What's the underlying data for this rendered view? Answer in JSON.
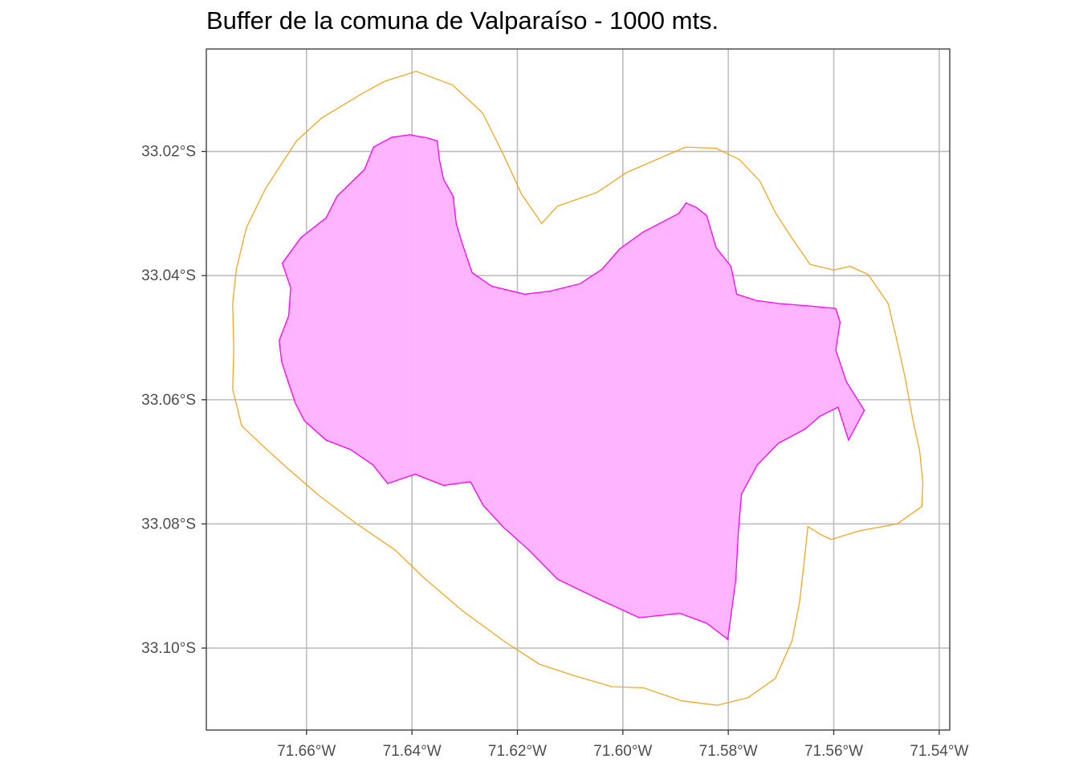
{
  "title": "Buffer de la comuna de Valparaíso - 1000 mts.",
  "chart_data": {
    "type": "map",
    "title": "Buffer de la comuna de Valparaíso - 1000 mts.",
    "crs": "lon/lat (degrees)",
    "xlim": [
      -71.679,
      -71.538
    ],
    "ylim": [
      -33.1132,
      -33.0035
    ],
    "x_ticks": [
      {
        "value": -71.66,
        "label": "71.66°W"
      },
      {
        "value": -71.64,
        "label": "71.64°W"
      },
      {
        "value": -71.62,
        "label": "71.62°W"
      },
      {
        "value": -71.6,
        "label": "71.60°W"
      },
      {
        "value": -71.58,
        "label": "71.58°W"
      },
      {
        "value": -71.56,
        "label": "71.56°W"
      },
      {
        "value": -71.54,
        "label": "71.54°W"
      }
    ],
    "y_ticks": [
      {
        "value": -33.02,
        "label": "33.02°S"
      },
      {
        "value": -33.04,
        "label": "33.04°S"
      },
      {
        "value": -33.06,
        "label": "33.06°S"
      },
      {
        "value": -33.08,
        "label": "33.08°S"
      },
      {
        "value": -33.1,
        "label": "33.10°S"
      }
    ],
    "grid": true,
    "legend": "none",
    "colors": {
      "buffer_stroke": "#f5a623",
      "comuna_fill": "#ffb3ff",
      "comuna_stroke": "#ff00ff",
      "grid": "#bebebe",
      "panel_border": "#333333"
    },
    "layers": [
      {
        "id": "buffer",
        "style": "outline",
        "coords": [
          [
            -71.6392,
            -33.0071
          ],
          [
            -71.6323,
            -33.0093
          ],
          [
            -71.6266,
            -33.0138
          ],
          [
            -71.6226,
            -33.0206
          ],
          [
            -71.6192,
            -33.0269
          ],
          [
            -71.6154,
            -33.0316
          ],
          [
            -71.6124,
            -33.0288
          ],
          [
            -71.6049,
            -33.0266
          ],
          [
            -71.5993,
            -33.0234
          ],
          [
            -71.5925,
            -33.0209
          ],
          [
            -71.5881,
            -33.0193
          ],
          [
            -71.5823,
            -33.0195
          ],
          [
            -71.5779,
            -33.0213
          ],
          [
            -71.574,
            -33.0248
          ],
          [
            -71.5711,
            -33.0298
          ],
          [
            -71.5679,
            -33.034
          ],
          [
            -71.5645,
            -33.0382
          ],
          [
            -71.56,
            -33.0391
          ],
          [
            -71.5569,
            -33.0385
          ],
          [
            -71.5535,
            -33.0398
          ],
          [
            -71.5497,
            -33.0445
          ],
          [
            -71.5482,
            -33.0498
          ],
          [
            -71.5465,
            -33.0563
          ],
          [
            -71.545,
            -33.0632
          ],
          [
            -71.5437,
            -33.0683
          ],
          [
            -71.5431,
            -33.0735
          ],
          [
            -71.5433,
            -33.0772
          ],
          [
            -71.548,
            -33.08
          ],
          [
            -71.5551,
            -33.0811
          ],
          [
            -71.5605,
            -33.0825
          ],
          [
            -71.5625,
            -33.0817
          ],
          [
            -71.5649,
            -33.0804
          ],
          [
            -71.5657,
            -33.0868
          ],
          [
            -71.5665,
            -33.0927
          ],
          [
            -71.5679,
            -33.0988
          ],
          [
            -71.5711,
            -33.1049
          ],
          [
            -71.5763,
            -33.108
          ],
          [
            -71.5821,
            -33.1092
          ],
          [
            -71.5888,
            -33.1085
          ],
          [
            -71.5961,
            -33.1064
          ],
          [
            -71.6021,
            -33.1062
          ],
          [
            -71.609,
            -33.1045
          ],
          [
            -71.6158,
            -33.1026
          ],
          [
            -71.6225,
            -33.0989
          ],
          [
            -71.6304,
            -33.094
          ],
          [
            -71.6377,
            -33.0887
          ],
          [
            -71.6432,
            -33.0842
          ],
          [
            -71.6506,
            -33.0799
          ],
          [
            -71.6575,
            -33.0755
          ],
          [
            -71.6635,
            -33.0711
          ],
          [
            -71.6682,
            -33.0675
          ],
          [
            -71.6723,
            -33.0642
          ],
          [
            -71.674,
            -33.0583
          ],
          [
            -71.6738,
            -33.0518
          ],
          [
            -71.674,
            -33.0445
          ],
          [
            -71.6733,
            -33.039
          ],
          [
            -71.6714,
            -33.0323
          ],
          [
            -71.6678,
            -33.026
          ],
          [
            -71.6619,
            -33.0183
          ],
          [
            -71.6571,
            -33.0146
          ],
          [
            -71.6495,
            -33.0107
          ],
          [
            -71.6452,
            -33.0087
          ],
          [
            -71.6392,
            -33.0071
          ]
        ]
      },
      {
        "id": "comuna",
        "style": "filled",
        "coords": [
          [
            -71.6403,
            -33.0173
          ],
          [
            -71.6393,
            -33.0175
          ],
          [
            -71.6372,
            -33.0178
          ],
          [
            -71.6352,
            -33.0183
          ],
          [
            -71.6348,
            -33.0213
          ],
          [
            -71.634,
            -33.0245
          ],
          [
            -71.6322,
            -33.0272
          ],
          [
            -71.6316,
            -33.0316
          ],
          [
            -71.6306,
            -33.0345
          ],
          [
            -71.6286,
            -33.0395
          ],
          [
            -71.6249,
            -33.0417
          ],
          [
            -71.6186,
            -33.043
          ],
          [
            -71.6138,
            -33.0425
          ],
          [
            -71.6081,
            -33.0413
          ],
          [
            -71.604,
            -33.039
          ],
          [
            -71.6006,
            -33.0357
          ],
          [
            -71.5962,
            -33.033
          ],
          [
            -71.5894,
            -33.03
          ],
          [
            -71.588,
            -33.0283
          ],
          [
            -71.5861,
            -33.029
          ],
          [
            -71.5841,
            -33.0303
          ],
          [
            -71.5823,
            -33.0355
          ],
          [
            -71.5795,
            -33.0385
          ],
          [
            -71.5784,
            -33.043
          ],
          [
            -71.5747,
            -33.044
          ],
          [
            -71.5704,
            -33.0445
          ],
          [
            -71.5646,
            -33.0449
          ],
          [
            -71.5596,
            -33.0453
          ],
          [
            -71.5588,
            -33.0475
          ],
          [
            -71.5596,
            -33.052
          ],
          [
            -71.5576,
            -33.0571
          ],
          [
            -71.5542,
            -33.0617
          ],
          [
            -71.5572,
            -33.0665
          ],
          [
            -71.5592,
            -33.0612
          ],
          [
            -71.5627,
            -33.0627
          ],
          [
            -71.5654,
            -33.0647
          ],
          [
            -71.5705,
            -33.067
          ],
          [
            -71.5745,
            -33.0705
          ],
          [
            -71.5775,
            -33.0752
          ],
          [
            -71.5781,
            -33.0815
          ],
          [
            -71.5786,
            -33.0891
          ],
          [
            -71.5801,
            -33.0986
          ],
          [
            -71.5841,
            -33.096
          ],
          [
            -71.5892,
            -33.0944
          ],
          [
            -71.5969,
            -33.0951
          ],
          [
            -71.6046,
            -33.0921
          ],
          [
            -71.6124,
            -33.0889
          ],
          [
            -71.6181,
            -33.084
          ],
          [
            -71.6227,
            -33.0805
          ],
          [
            -71.6265,
            -33.077
          ],
          [
            -71.6289,
            -33.0732
          ],
          [
            -71.634,
            -33.0738
          ],
          [
            -71.6394,
            -33.072
          ],
          [
            -71.6446,
            -33.0735
          ],
          [
            -71.6474,
            -33.0705
          ],
          [
            -71.6517,
            -33.068
          ],
          [
            -71.6563,
            -33.0665
          ],
          [
            -71.6604,
            -33.0634
          ],
          [
            -71.6621,
            -33.0606
          ],
          [
            -71.6636,
            -33.0568
          ],
          [
            -71.6647,
            -33.0539
          ],
          [
            -71.6652,
            -33.0505
          ],
          [
            -71.6634,
            -33.0465
          ],
          [
            -71.663,
            -33.042
          ],
          [
            -71.6646,
            -33.038
          ],
          [
            -71.6611,
            -33.0339
          ],
          [
            -71.6563,
            -33.0307
          ],
          [
            -71.6542,
            -33.0272
          ],
          [
            -71.649,
            -33.0229
          ],
          [
            -71.6473,
            -33.0193
          ],
          [
            -71.6438,
            -33.0177
          ],
          [
            -71.6403,
            -33.0173
          ]
        ]
      }
    ]
  }
}
